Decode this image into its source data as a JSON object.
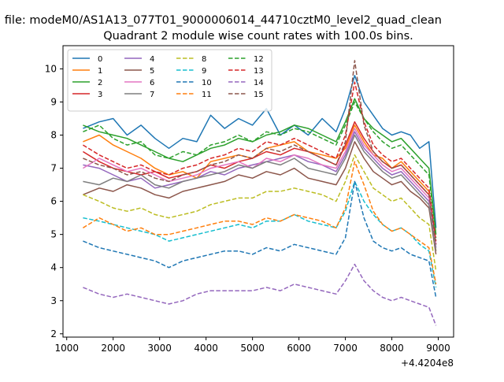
{
  "figure": {
    "suptitle": "n file: modeM0/AS1A13_077T01_9000006014_44710cztM0_level2_quad_clean",
    "title": "Quadrant 2 module wise count rates with 100.0s bins.",
    "x_offset_label": "+4.4204e8"
  },
  "chart_data": {
    "type": "line",
    "title": "Quadrant 2 module wise count rates with 100.0s bins.",
    "xlabel": "",
    "ylabel": "",
    "xlim": [
      920,
      9330
    ],
    "ylim": [
      1.9,
      10.7
    ],
    "x_ticks": [
      1000,
      2000,
      3000,
      4000,
      5000,
      6000,
      7000,
      8000,
      9000
    ],
    "y_ticks": [
      2,
      3,
      4,
      5,
      6,
      7,
      8,
      9,
      10
    ],
    "x_offset": 442040000,
    "grid": false,
    "legend_position": "top-left",
    "legend_columns": 4,
    "series": [
      {
        "name": "0",
        "color": "#1f77b4",
        "dash": "solid",
        "x": [
          1350,
          1700,
          2000,
          2300,
          2600,
          2900,
          3200,
          3500,
          3800,
          4100,
          4400,
          4700,
          5000,
          5300,
          5600,
          5900,
          6200,
          6500,
          6800,
          7000,
          7200,
          7400,
          7600,
          7800,
          8000,
          8200,
          8400,
          8600,
          8800,
          8950
        ],
        "y": [
          8.2,
          8.4,
          8.5,
          8.0,
          8.3,
          7.9,
          7.6,
          7.9,
          7.8,
          8.6,
          8.2,
          8.5,
          8.3,
          8.8,
          8.0,
          8.3,
          8.0,
          8.5,
          8.1,
          8.8,
          9.8,
          9.0,
          8.6,
          8.2,
          8.0,
          8.1,
          8.0,
          7.6,
          7.8,
          5.2
        ]
      },
      {
        "name": "1",
        "color": "#ff7f0e",
        "dash": "solid",
        "x": [
          1350,
          1700,
          2000,
          2300,
          2600,
          2900,
          3200,
          3500,
          3800,
          4100,
          4400,
          4700,
          5000,
          5300,
          5600,
          5900,
          6200,
          6500,
          6800,
          7000,
          7200,
          7400,
          7600,
          7800,
          8000,
          8200,
          8400,
          8600,
          8800,
          8950
        ],
        "y": [
          7.8,
          8.0,
          7.7,
          7.5,
          7.3,
          7.0,
          6.8,
          6.9,
          6.7,
          7.2,
          7.3,
          7.4,
          7.3,
          7.6,
          7.7,
          7.8,
          7.5,
          7.4,
          7.3,
          7.6,
          8.3,
          7.8,
          7.4,
          7.3,
          7.0,
          7.2,
          6.9,
          6.6,
          6.3,
          4.5
        ]
      },
      {
        "name": "2",
        "color": "#2ca02c",
        "dash": "solid",
        "x": [
          1350,
          1700,
          2000,
          2300,
          2600,
          2900,
          3200,
          3500,
          3800,
          4100,
          4400,
          4700,
          5000,
          5300,
          5600,
          5900,
          6200,
          6500,
          6800,
          7000,
          7200,
          7400,
          7600,
          7800,
          8000,
          8200,
          8400,
          8600,
          8800,
          8950
        ],
        "y": [
          8.3,
          8.1,
          8.0,
          7.9,
          7.7,
          7.5,
          7.3,
          7.2,
          7.4,
          7.6,
          7.7,
          7.9,
          7.8,
          8.0,
          8.1,
          8.3,
          8.2,
          8.0,
          7.8,
          8.4,
          9.1,
          8.5,
          8.2,
          8.0,
          7.8,
          7.9,
          7.6,
          7.3,
          7.0,
          5.0
        ]
      },
      {
        "name": "3",
        "color": "#d62728",
        "dash": "solid",
        "x": [
          1350,
          1700,
          2000,
          2300,
          2600,
          2900,
          3200,
          3500,
          3800,
          4100,
          4400,
          4700,
          5000,
          5300,
          5600,
          5900,
          6200,
          6500,
          6800,
          7000,
          7200,
          7400,
          7600,
          7800,
          8000,
          8200,
          8400,
          8600,
          8800,
          8950
        ],
        "y": [
          7.5,
          7.2,
          7.0,
          6.9,
          6.8,
          6.9,
          6.7,
          6.8,
          6.9,
          7.1,
          7.0,
          7.2,
          7.3,
          7.5,
          7.4,
          7.6,
          7.5,
          7.3,
          7.1,
          7.7,
          8.4,
          7.9,
          7.5,
          7.2,
          7.0,
          7.1,
          6.8,
          6.5,
          6.2,
          4.7
        ]
      },
      {
        "name": "4",
        "color": "#9467bd",
        "dash": "solid",
        "x": [
          1350,
          1700,
          2000,
          2300,
          2600,
          2900,
          3200,
          3500,
          3800,
          4100,
          4400,
          4700,
          5000,
          5300,
          5600,
          5900,
          6200,
          6500,
          6800,
          7000,
          7200,
          7400,
          7600,
          7800,
          8000,
          8200,
          8400,
          8600,
          8800,
          8950
        ],
        "y": [
          7.1,
          7.0,
          6.8,
          6.6,
          6.7,
          6.4,
          6.5,
          6.6,
          6.7,
          6.9,
          6.8,
          7.0,
          7.1,
          7.2,
          7.3,
          7.4,
          7.2,
          7.1,
          6.9,
          7.4,
          8.1,
          7.6,
          7.3,
          7.0,
          6.8,
          6.9,
          6.6,
          6.3,
          6.0,
          4.6
        ]
      },
      {
        "name": "5",
        "color": "#8c564b",
        "dash": "solid",
        "x": [
          1350,
          1700,
          2000,
          2300,
          2600,
          2900,
          3200,
          3500,
          3800,
          4100,
          4400,
          4700,
          5000,
          5300,
          5600,
          5900,
          6200,
          6500,
          6800,
          7000,
          7200,
          7400,
          7600,
          7800,
          8000,
          8200,
          8400,
          8600,
          8800,
          8950
        ],
        "y": [
          6.2,
          6.4,
          6.3,
          6.5,
          6.4,
          6.2,
          6.1,
          6.3,
          6.4,
          6.5,
          6.6,
          6.8,
          6.7,
          6.9,
          6.8,
          7.0,
          6.7,
          6.6,
          6.5,
          7.0,
          7.8,
          7.3,
          6.9,
          6.7,
          6.5,
          6.6,
          6.3,
          6.1,
          5.8,
          4.4
        ]
      },
      {
        "name": "6",
        "color": "#e377c2",
        "dash": "solid",
        "x": [
          1350,
          1700,
          2000,
          2300,
          2600,
          2900,
          3200,
          3500,
          3800,
          4100,
          4400,
          4700,
          5000,
          5300,
          5600,
          5900,
          6200,
          6500,
          6800,
          7000,
          7200,
          7400,
          7600,
          7800,
          8000,
          8200,
          8400,
          8600,
          8800,
          8950
        ],
        "y": [
          7.0,
          7.3,
          7.1,
          6.9,
          7.0,
          6.8,
          6.6,
          6.7,
          6.8,
          7.0,
          7.1,
          7.2,
          7.0,
          7.3,
          7.2,
          7.4,
          7.3,
          7.1,
          7.0,
          7.5,
          8.2,
          7.7,
          7.4,
          7.1,
          6.9,
          7.0,
          6.7,
          6.4,
          6.1,
          4.7
        ]
      },
      {
        "name": "7",
        "color": "#7f7f7f",
        "dash": "solid",
        "x": [
          1350,
          1700,
          2000,
          2300,
          2600,
          2900,
          3200,
          3500,
          3800,
          4100,
          4400,
          4700,
          5000,
          5300,
          5600,
          5900,
          6200,
          6500,
          6800,
          7000,
          7200,
          7400,
          7600,
          7800,
          8000,
          8200,
          8400,
          8600,
          8800,
          8950
        ],
        "y": [
          6.6,
          6.5,
          6.7,
          6.6,
          6.8,
          6.5,
          6.4,
          6.6,
          6.7,
          6.8,
          6.9,
          7.1,
          7.0,
          7.2,
          7.1,
          7.3,
          7.0,
          6.9,
          6.8,
          7.3,
          8.0,
          7.5,
          7.2,
          6.9,
          6.7,
          6.8,
          6.5,
          6.2,
          5.9,
          4.5
        ]
      },
      {
        "name": "8",
        "color": "#bcbd22",
        "dash": "dashed",
        "x": [
          1350,
          1700,
          2000,
          2300,
          2600,
          2900,
          3200,
          3500,
          3800,
          4100,
          4400,
          4700,
          5000,
          5300,
          5600,
          5900,
          6200,
          6500,
          6800,
          7000,
          7200,
          7400,
          7600,
          7800,
          8000,
          8200,
          8400,
          8600,
          8800,
          8950
        ],
        "y": [
          6.2,
          6.0,
          5.8,
          5.7,
          5.8,
          5.6,
          5.5,
          5.6,
          5.7,
          5.9,
          6.0,
          6.1,
          6.1,
          6.3,
          6.3,
          6.4,
          6.3,
          6.2,
          6.0,
          6.6,
          7.4,
          6.9,
          6.4,
          6.2,
          6.0,
          6.1,
          5.8,
          5.5,
          5.3,
          3.9
        ]
      },
      {
        "name": "9",
        "color": "#17becf",
        "dash": "dashed",
        "x": [
          1350,
          1700,
          2000,
          2300,
          2600,
          2900,
          3200,
          3500,
          3800,
          4100,
          4400,
          4700,
          5000,
          5300,
          5600,
          5900,
          6200,
          6500,
          6800,
          7000,
          7200,
          7400,
          7600,
          7800,
          8000,
          8200,
          8400,
          8600,
          8800,
          8950
        ],
        "y": [
          5.5,
          5.4,
          5.3,
          5.2,
          5.1,
          5.0,
          4.8,
          4.9,
          5.0,
          5.1,
          5.2,
          5.3,
          5.2,
          5.4,
          5.4,
          5.6,
          5.4,
          5.3,
          5.2,
          5.7,
          6.6,
          6.0,
          5.6,
          5.3,
          5.1,
          5.2,
          5.0,
          4.7,
          4.5,
          3.4
        ]
      },
      {
        "name": "10",
        "color": "#1f77b4",
        "dash": "dashed",
        "x": [
          1350,
          1700,
          2000,
          2300,
          2600,
          2900,
          3200,
          3500,
          3800,
          4100,
          4400,
          4700,
          5000,
          5300,
          5600,
          5900,
          6200,
          6500,
          6800,
          7000,
          7200,
          7400,
          7600,
          7800,
          8000,
          8200,
          8400,
          8600,
          8800,
          8950
        ],
        "y": [
          4.8,
          4.6,
          4.5,
          4.4,
          4.3,
          4.2,
          4.0,
          4.2,
          4.3,
          4.4,
          4.5,
          4.5,
          4.4,
          4.6,
          4.5,
          4.7,
          4.6,
          4.5,
          4.4,
          4.9,
          6.6,
          5.5,
          4.8,
          4.6,
          4.5,
          4.6,
          4.4,
          4.3,
          4.2,
          3.1
        ]
      },
      {
        "name": "11",
        "color": "#ff7f0e",
        "dash": "dashed",
        "x": [
          1350,
          1700,
          2000,
          2300,
          2600,
          2900,
          3200,
          3500,
          3800,
          4100,
          4400,
          4700,
          5000,
          5300,
          5600,
          5900,
          6200,
          6500,
          6800,
          7000,
          7200,
          7400,
          7600,
          7800,
          8000,
          8200,
          8400,
          8600,
          8800,
          8950
        ],
        "y": [
          5.2,
          5.5,
          5.3,
          5.1,
          5.2,
          5.0,
          5.0,
          5.1,
          5.2,
          5.3,
          5.4,
          5.4,
          5.3,
          5.5,
          5.4,
          5.6,
          5.5,
          5.4,
          5.2,
          5.8,
          7.2,
          6.5,
          5.7,
          5.3,
          5.1,
          5.2,
          5.0,
          4.8,
          4.6,
          3.5
        ]
      },
      {
        "name": "12",
        "color": "#2ca02c",
        "dash": "dashed",
        "x": [
          1350,
          1700,
          2000,
          2300,
          2600,
          2900,
          3200,
          3500,
          3800,
          4100,
          4400,
          4700,
          5000,
          5300,
          5600,
          5900,
          6200,
          6500,
          6800,
          7000,
          7200,
          7400,
          7600,
          7800,
          8000,
          8200,
          8400,
          8600,
          8800,
          8950
        ],
        "y": [
          8.1,
          8.3,
          7.9,
          7.7,
          7.8,
          7.4,
          7.3,
          7.5,
          7.4,
          7.7,
          7.8,
          8.0,
          7.8,
          8.1,
          8.0,
          8.2,
          8.1,
          7.9,
          7.7,
          8.3,
          9.0,
          8.5,
          8.1,
          7.8,
          7.6,
          7.7,
          7.4,
          7.1,
          6.8,
          4.9
        ]
      },
      {
        "name": "13",
        "color": "#d62728",
        "dash": "dashed",
        "x": [
          1350,
          1700,
          2000,
          2300,
          2600,
          2900,
          3200,
          3500,
          3800,
          4100,
          4400,
          4700,
          5000,
          5300,
          5600,
          5900,
          6200,
          6500,
          6800,
          7000,
          7200,
          7400,
          7600,
          7800,
          8000,
          8200,
          8400,
          8600,
          8800,
          8950
        ],
        "y": [
          7.7,
          7.4,
          7.2,
          7.0,
          7.1,
          6.9,
          6.8,
          7.0,
          7.1,
          7.3,
          7.4,
          7.6,
          7.5,
          7.8,
          7.7,
          7.9,
          7.7,
          7.5,
          7.3,
          8.0,
          9.6,
          8.4,
          7.7,
          7.4,
          7.2,
          7.3,
          7.0,
          6.7,
          6.4,
          4.8
        ]
      },
      {
        "name": "14",
        "color": "#9467bd",
        "dash": "dashed",
        "x": [
          1350,
          1700,
          2000,
          2300,
          2600,
          2900,
          3200,
          3500,
          3800,
          4100,
          4400,
          4700,
          5000,
          5300,
          5600,
          5900,
          6200,
          6500,
          6800,
          7000,
          7200,
          7400,
          7600,
          7800,
          8000,
          8200,
          8400,
          8600,
          8800,
          8950
        ],
        "y": [
          3.4,
          3.2,
          3.1,
          3.2,
          3.1,
          3.0,
          2.9,
          3.0,
          3.2,
          3.3,
          3.3,
          3.3,
          3.3,
          3.4,
          3.3,
          3.5,
          3.4,
          3.3,
          3.2,
          3.6,
          4.1,
          3.6,
          3.3,
          3.1,
          3.0,
          3.1,
          3.0,
          2.9,
          2.8,
          2.25
        ]
      },
      {
        "name": "15",
        "color": "#8c564b",
        "dash": "dashed",
        "x": [
          1350,
          1700,
          2000,
          2300,
          2600,
          2900,
          3200,
          3500,
          3800,
          4100,
          4400,
          4700,
          5000,
          5300,
          5600,
          5900,
          6200,
          6500,
          6800,
          7000,
          7200,
          7400,
          7600,
          7800,
          8000,
          8200,
          8400,
          8600,
          8800,
          8950
        ],
        "y": [
          7.3,
          7.1,
          7.0,
          6.8,
          6.9,
          6.7,
          6.6,
          6.8,
          6.9,
          7.1,
          7.2,
          7.4,
          7.3,
          7.6,
          7.5,
          7.7,
          7.5,
          7.3,
          7.1,
          7.8,
          10.25,
          8.3,
          7.5,
          7.2,
          7.0,
          7.1,
          6.8,
          6.5,
          6.2,
          4.7
        ]
      }
    ]
  }
}
